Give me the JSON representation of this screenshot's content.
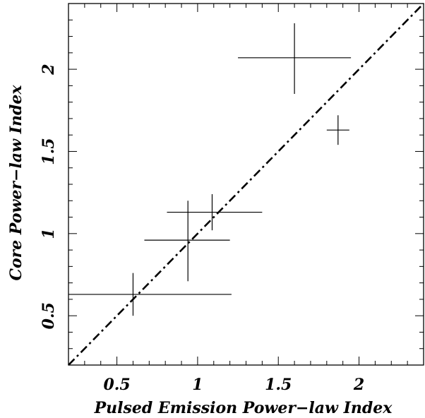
{
  "chart_data": {
    "type": "scatter",
    "title": "",
    "xlabel": "Pulsed Emission Power−law Index",
    "ylabel": "Core Power−law Index",
    "xlim": [
      0.2,
      2.4
    ],
    "ylim": [
      0.2,
      2.4
    ],
    "x_ticks": [
      0.5,
      1,
      1.5,
      2
    ],
    "y_ticks": [
      0.5,
      1,
      1.5,
      2
    ],
    "x_tick_labels": [
      "0.5",
      "1",
      "1.5",
      "2"
    ],
    "y_tick_labels": [
      "0.5",
      "1",
      "1.5",
      "2"
    ],
    "grid": false,
    "reference_line": {
      "slope": 1,
      "intercept": 0,
      "style": "dash-dot"
    },
    "points": [
      {
        "x": 0.6,
        "y": 0.63,
        "x_low": 0.2,
        "x_high": 1.21,
        "y_low": 0.5,
        "y_high": 0.76
      },
      {
        "x": 0.94,
        "y": 0.96,
        "x_low": 0.67,
        "x_high": 1.2,
        "y_low": 0.71,
        "y_high": 1.2
      },
      {
        "x": 1.09,
        "y": 1.13,
        "x_low": 0.81,
        "x_high": 1.4,
        "y_low": 1.02,
        "y_high": 1.24
      },
      {
        "x": 1.6,
        "y": 2.07,
        "x_low": 1.25,
        "x_high": 1.95,
        "y_low": 1.85,
        "y_high": 2.28
      },
      {
        "x": 1.87,
        "y": 1.63,
        "x_low": 1.8,
        "x_high": 1.94,
        "y_low": 1.54,
        "y_high": 1.72
      }
    ]
  }
}
